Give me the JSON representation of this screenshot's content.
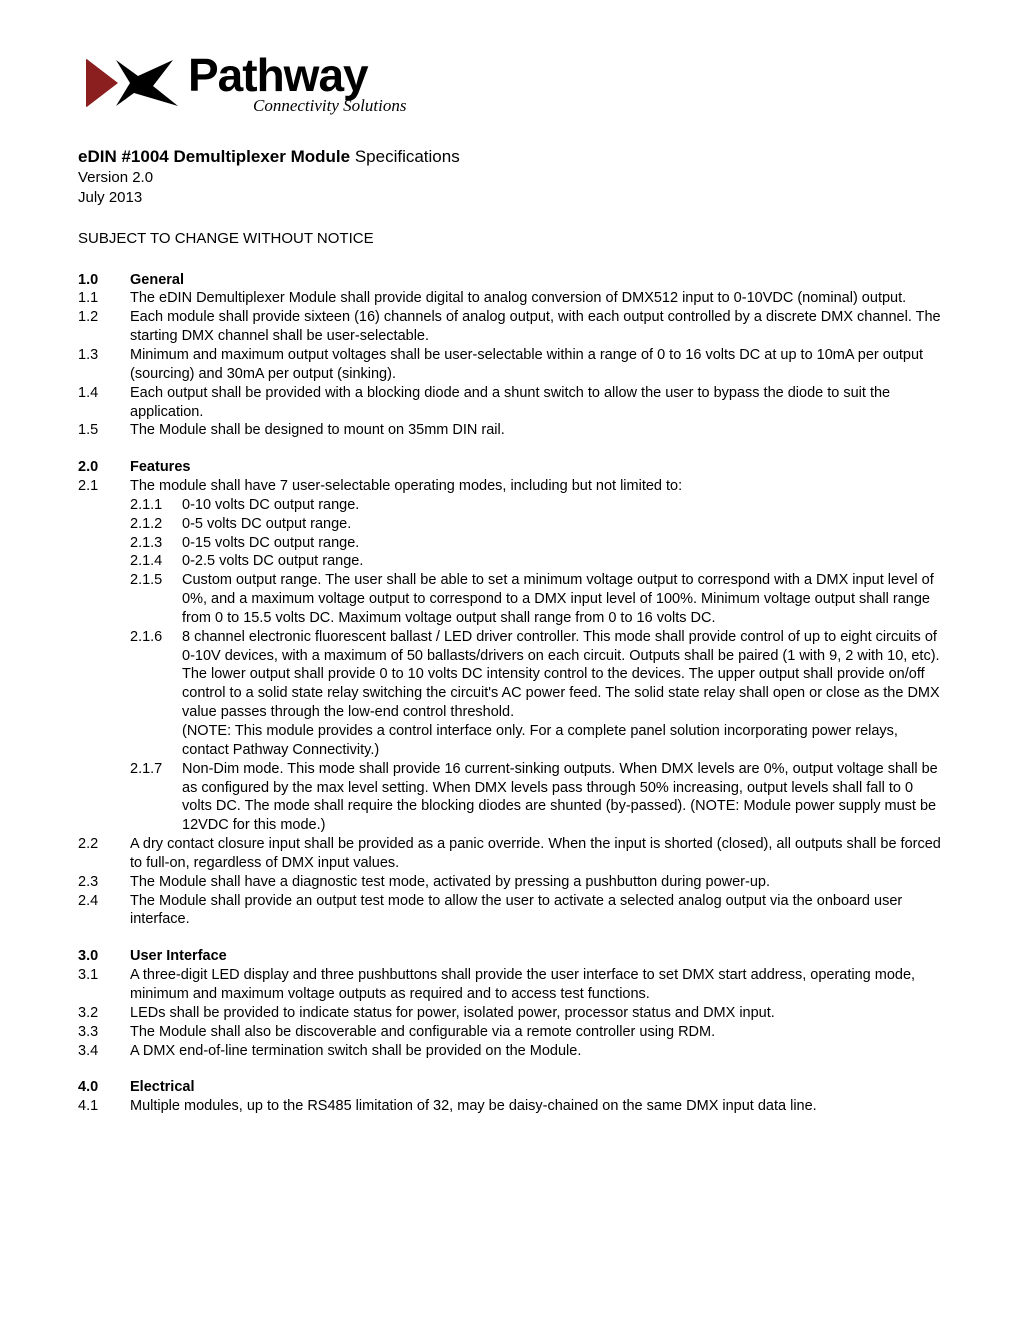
{
  "logo": {
    "main": "Pathway",
    "sub": "Connectivity Solutions",
    "icon_color_dark": "#8b1e1e",
    "icon_color_black": "#000000"
  },
  "title": {
    "bold": "eDIN #1004 Demultiplexer Module",
    "reg": "  Specifications"
  },
  "version": "Version 2.0",
  "date": "July 2013",
  "notice": "SUBJECT TO CHANGE WITHOUT NOTICE",
  "sections": [
    {
      "num": "1.0",
      "heading": "General",
      "items": [
        {
          "n": "1.1",
          "t": "The eDIN Demultiplexer Module shall provide digital to analog conversion of DMX512 input to 0-10VDC (nominal) output."
        },
        {
          "n": "1.2",
          "t": "Each module shall provide sixteen (16) channels of analog output, with each output controlled by a discrete DMX channel. The starting DMX channel shall be user-selectable."
        },
        {
          "n": "1.3",
          "t": "Minimum and maximum output voltages shall be user-selectable within a range of 0 to 16 volts DC at up to 10mA per output (sourcing) and 30mA per output (sinking)."
        },
        {
          "n": "1.4",
          "t": "Each output shall be provided with a blocking diode and a shunt switch to allow the user to bypass the diode to suit the application."
        },
        {
          "n": "1.5",
          "t": "The Module shall be designed to mount on 35mm DIN rail."
        }
      ]
    },
    {
      "num": "2.0",
      "heading": "Features",
      "items": [
        {
          "n": "2.1",
          "t": "The module shall have 7 user-selectable operating modes, including but not limited to:",
          "sub": [
            {
              "n": "2.1.1",
              "t": "0-10 volts DC output range."
            },
            {
              "n": "2.1.2",
              "t": "0-5 volts DC output range."
            },
            {
              "n": "2.1.3",
              "t": "0-15 volts DC output range."
            },
            {
              "n": "2.1.4",
              "t": "0-2.5 volts DC output range."
            },
            {
              "n": "2.1.5",
              "t": "Custom output range. The user shall be able to set a minimum voltage output to correspond with a DMX input level of 0%, and a maximum voltage output to correspond to a DMX input level of 100%. Minimum voltage output shall range from 0 to 15.5 volts DC. Maximum voltage output shall range from 0 to 16 volts DC."
            },
            {
              "n": "2.1.6",
              "t": "8 channel electronic fluorescent ballast / LED driver controller. This mode shall provide control of up to eight circuits of 0-10V devices, with a maximum of 50 ballasts/drivers on each circuit. Outputs shall be paired (1 with 9, 2 with 10, etc). The lower output shall provide 0 to 10 volts DC intensity control to the devices. The upper output shall provide on/off control to a solid state relay switching the circuit's AC power feed. The solid state relay shall open or close as the DMX value passes through the low-end control threshold.\n(NOTE:  This module provides a control interface only. For a complete panel solution incorporating power relays, contact Pathway Connectivity.)"
            },
            {
              "n": "2.1.7",
              "t": "Non-Dim mode. This mode shall provide 16 current-sinking outputs. When DMX levels are 0%, output voltage shall be as configured by the max level setting. When DMX levels pass through 50% increasing, output levels shall fall to 0 volts DC. The mode shall require the blocking diodes are shunted (by-passed). (NOTE: Module power supply must be 12VDC for this mode.)"
            }
          ]
        },
        {
          "n": "2.2",
          "t": "A dry contact closure input shall be provided as a panic override. When the input is shorted (closed), all outputs shall be forced to full-on, regardless of DMX input values."
        },
        {
          "n": "2.3",
          "t": "The Module shall have a diagnostic test mode, activated by pressing a pushbutton during power-up."
        },
        {
          "n": "2.4",
          "t": "The Module shall provide an output test mode to allow the user to activate a selected analog output via the onboard user interface."
        }
      ]
    },
    {
      "num": "3.0",
      "heading": "User Interface",
      "items": [
        {
          "n": "3.1",
          "t": "A three-digit LED display and three pushbuttons shall provide the user interface to set DMX start address, operating mode, minimum and maximum voltage outputs as required and to access test functions."
        },
        {
          "n": "3.2",
          "t": "LEDs shall be provided to indicate status for power, isolated power, processor status and DMX input."
        },
        {
          "n": "3.3",
          "t": "The Module shall also be discoverable and configurable via a remote controller using RDM."
        },
        {
          "n": "3.4",
          "t": "A DMX end-of-line termination switch shall be provided on the Module."
        }
      ]
    },
    {
      "num": "4.0",
      "heading": "Electrical",
      "items": [
        {
          "n": "4.1",
          "t": "Multiple modules, up to the RS485 limitation of 32, may be daisy-chained on the same DMX input data line."
        }
      ]
    }
  ]
}
